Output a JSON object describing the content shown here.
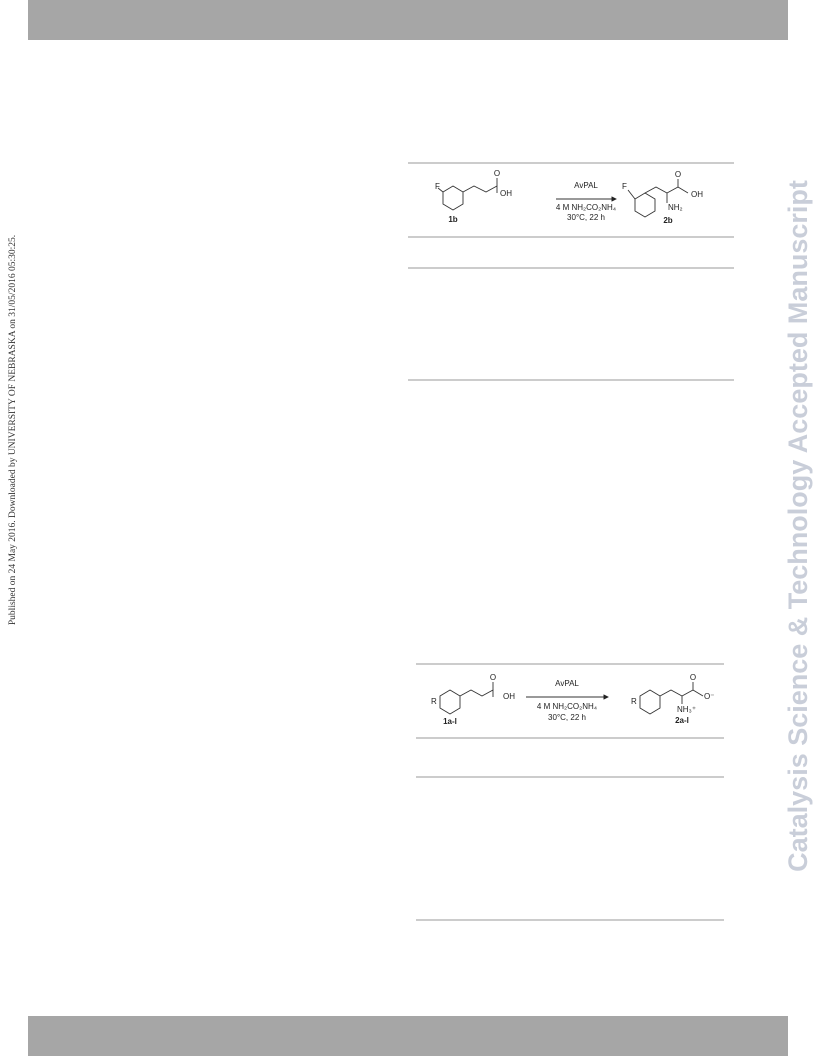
{
  "sidebar": {
    "published": "Published on 24 May 2016. Downloaded by UNIVERSITY OF NEBRASKA on 31/05/2016 05:30:25.",
    "watermark": "Catalysis Science & Technology Accepted Manuscript"
  },
  "scheme_1": {
    "substituent": "F",
    "carbonyl": "O",
    "acid": "OH",
    "substrate": "1b",
    "enzyme": "AvPAL",
    "reagent": "4 M NH₂CO₂NH₄",
    "conditions": "30°C, 22 h",
    "product_substituent": "F",
    "product_carbonyl": "O",
    "product_acid": "OH",
    "amine": "NH₂",
    "product": "2b"
  },
  "scheme_2": {
    "substituent": "R",
    "carbonyl": "O",
    "acid": "OH",
    "substrate": "1a-l",
    "enzyme": "AvPAL",
    "reagent": "4 M NH₂CO₂NH₄",
    "conditions": "30°C, 22 h",
    "product_substituent": "R",
    "product_carbonyl": "O",
    "product_acid": "O⁻",
    "amine": "NH₃⁺",
    "product": "2a-l"
  }
}
